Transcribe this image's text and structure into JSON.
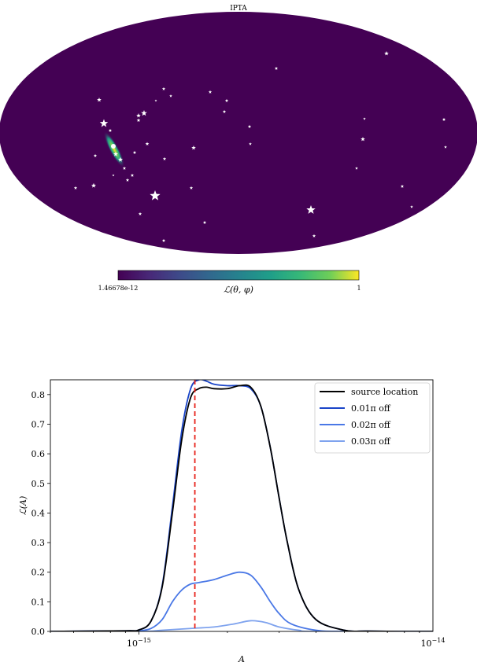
{
  "chart_data": [
    {
      "type": "heatmap",
      "projection": "mollweide",
      "title": "IPTA",
      "background_color": "#440154",
      "colorbar": {
        "colormap": "viridis",
        "min_label": "1.46678e-12",
        "max_label": "1",
        "label": "ℒ(θ, φ)"
      },
      "source_marker": {
        "color": "#ffffff"
      },
      "pulsar_marker_color": "#ffffff"
    },
    {
      "type": "line",
      "xscale": "log",
      "xlim": [
        5e-16,
        1e-14
      ],
      "ylim": [
        0.0,
        0.85
      ],
      "xlabel": "A",
      "ylabel": "ℒ(A)",
      "xtick_labels": [
        {
          "value": 1e-15,
          "mant": "10",
          "exp": "−15"
        },
        {
          "value": 1e-14,
          "mant": "10",
          "exp": "−14"
        }
      ],
      "yticks": [
        "0.0",
        "0.1",
        "0.2",
        "0.3",
        "0.4",
        "0.5",
        "0.6",
        "0.7",
        "0.8"
      ],
      "legend_position": "upper right",
      "vertical_line": {
        "x": 1.55e-15,
        "color": "#e8221a",
        "style": "dashed"
      },
      "series": [
        {
          "name": "source location",
          "color": "#000000",
          "x": [
            5e-16,
            9e-16,
            1e-15,
            1.1e-15,
            1.2e-15,
            1.3e-15,
            1.4e-15,
            1.5e-15,
            1.6e-15,
            1.7e-15,
            1.8e-15,
            2e-15,
            2.2e-15,
            2.4e-15,
            2.6e-15,
            2.8e-15,
            3e-15,
            3.2e-15,
            3.5e-15,
            4e-15,
            5e-15,
            6e-15,
            8e-15,
            1e-14
          ],
          "y": [
            0.0,
            0.002,
            0.005,
            0.035,
            0.15,
            0.4,
            0.65,
            0.79,
            0.82,
            0.825,
            0.82,
            0.82,
            0.83,
            0.825,
            0.76,
            0.62,
            0.45,
            0.3,
            0.14,
            0.04,
            0.004,
            0.001,
            0.0,
            0.0
          ]
        },
        {
          "name": "0.01π off",
          "color": "#1a45c8",
          "x": [
            5e-16,
            9e-16,
            1e-15,
            1.1e-15,
            1.2e-15,
            1.3e-15,
            1.4e-15,
            1.5e-15,
            1.6e-15,
            1.7e-15,
            1.8e-15,
            2e-15,
            2.2e-15,
            2.4e-15,
            2.6e-15,
            2.8e-15,
            3e-15,
            3.2e-15,
            3.5e-15,
            4e-15,
            5e-15,
            6e-15,
            8e-15,
            1e-14
          ],
          "y": [
            0.0,
            0.002,
            0.005,
            0.035,
            0.155,
            0.42,
            0.68,
            0.82,
            0.85,
            0.845,
            0.835,
            0.83,
            0.83,
            0.82,
            0.76,
            0.62,
            0.45,
            0.3,
            0.14,
            0.04,
            0.004,
            0.001,
            0.0,
            0.0
          ]
        },
        {
          "name": "0.02π off",
          "color": "#4a78e6",
          "x": [
            5e-16,
            9e-16,
            1e-15,
            1.1e-15,
            1.2e-15,
            1.3e-15,
            1.4e-15,
            1.5e-15,
            1.6e-15,
            1.8e-15,
            2e-15,
            2.2e-15,
            2.4e-15,
            2.6e-15,
            2.8e-15,
            3e-15,
            3.3e-15,
            4e-15,
            5e-15,
            1e-14
          ],
          "y": [
            0.0,
            0.001,
            0.002,
            0.01,
            0.04,
            0.1,
            0.14,
            0.16,
            0.165,
            0.175,
            0.19,
            0.2,
            0.19,
            0.15,
            0.1,
            0.06,
            0.025,
            0.004,
            0.0,
            0.0
          ]
        },
        {
          "name": "0.03π off",
          "color": "#7fa3ee",
          "x": [
            5e-16,
            1e-15,
            1.2e-15,
            1.5e-15,
            1.8e-15,
            2.1e-15,
            2.4e-15,
            2.7e-15,
            3e-15,
            3.5e-15,
            4e-15,
            1e-14
          ],
          "y": [
            0.0,
            0.0,
            0.004,
            0.01,
            0.015,
            0.025,
            0.036,
            0.03,
            0.015,
            0.004,
            0.0,
            0.0
          ]
        }
      ]
    }
  ]
}
